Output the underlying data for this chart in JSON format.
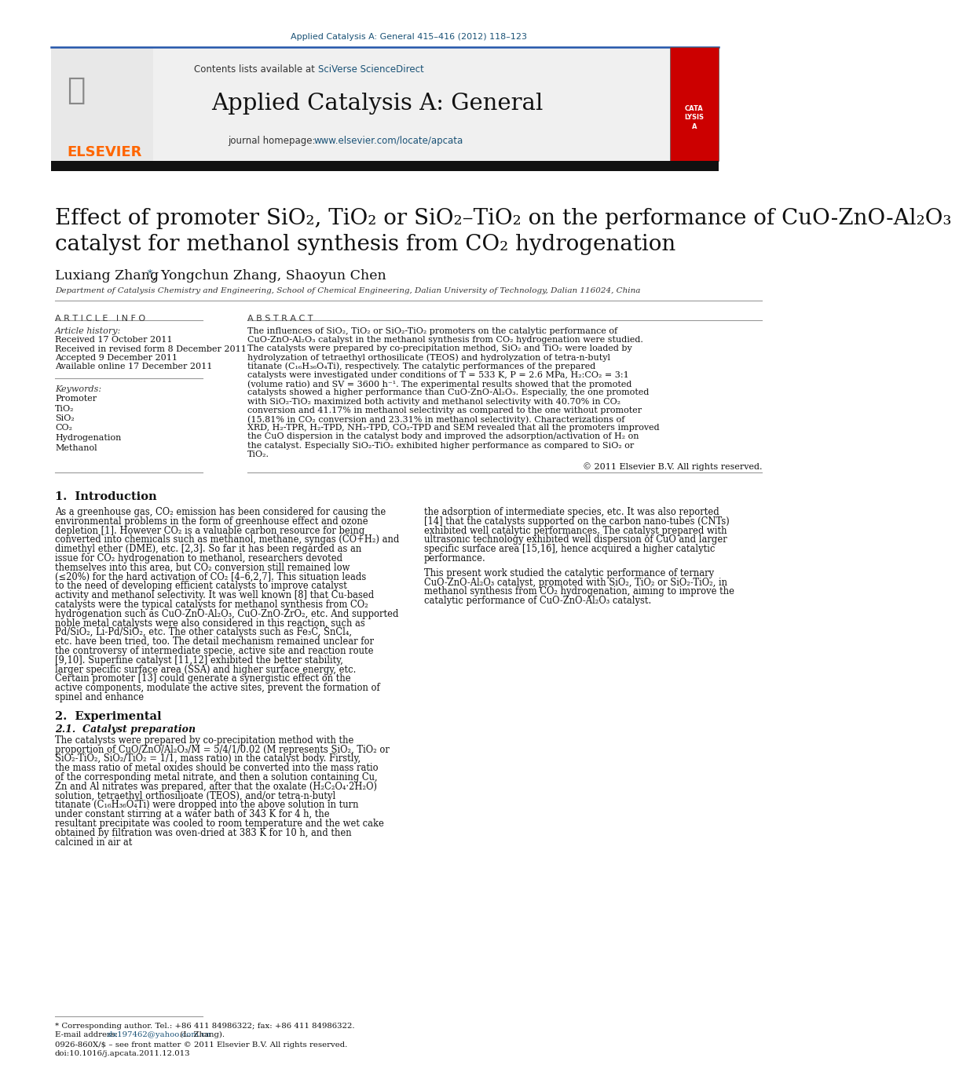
{
  "journal_ref": "Applied Catalysis A: General 415–416 (2012) 118–123",
  "journal_ref_color": "#1a5276",
  "journal_name": "Applied Catalysis A: General",
  "homepage_url": "www.elsevier.com/locate/apcata",
  "link_color": "#1a5276",
  "title_line1": "Effect of promoter SiO₂, TiO₂ or SiO₂–TiO₂ on the performance of CuO-ZnO-Al₂O₃",
  "title_line2": "catalyst for methanol synthesis from CO₂ hydrogenation",
  "authors": "Luxiang Zhang",
  "authors_rest": ", Yongchun Zhang, Shaoyun Chen",
  "affiliation": "Department of Catalysis Chemistry and Engineering, School of Chemical Engineering, Dalian University of Technology, Dalian 116024, China",
  "article_info_header": "A R T I C L E   I N F O",
  "abstract_header": "A B S T R A C T",
  "article_history_label": "Article history:",
  "received": "Received 17 October 2011",
  "revised": "Received in revised form 8 December 2011",
  "accepted": "Accepted 9 December 2011",
  "available": "Available online 17 December 2011",
  "keywords_label": "Keywords:",
  "keywords": [
    "Promoter",
    "TiO₂",
    "SiO₂",
    "CO₂",
    "Hydrogenation",
    "Methanol"
  ],
  "abstract_text": "The influences of SiO₂, TiO₂ or SiO₂-TiO₂ promoters on the catalytic performance of CuO-ZnO-Al₂O₃ catalyst in the methanol synthesis from CO₂ hydrogenation were studied. The catalysts were prepared by co-precipitation method, SiO₂ and TiO₂ were loaded by hydrolyzation of tetraethyl orthosilicate (TEOS) and hydrolyzation of tetra-n-butyl titanate (C₁₆H₃₆O₄Ti), respectively. The catalytic performances of the prepared catalysts were investigated under conditions of T = 533 K, P = 2.6 MPa, H₂:CO₂ = 3:1 (volume ratio) and SV = 3600 h⁻¹. The experimental results showed that the promoted catalysts showed a higher performance than CuO-ZnO-Al₂O₃. Especially, the one promoted with SiO₂-TiO₂ maximized both activity and methanol selectivity with 40.70% in CO₂ conversion and 41.17% in methanol selectivity as compared to the one without promoter (15.81% in CO₂ conversion and 23.31% in methanol selectivity). Characterizations of XRD, H₂-TPR, H₂-TPD, NH₃-TPD, CO₂-TPD and SEM revealed that all the promoters improved the CuO dispersion in the catalyst body and improved the adsorption/activation of H₂ on the catalyst. Especially SiO₂-TiO₂ exhibited higher performance as compared to SiO₂ or TiO₂.",
  "copyright": "© 2011 Elsevier B.V. All rights reserved.",
  "section1_title": "1.  Introduction",
  "intro_col1_para1": "    As a greenhouse gas, CO₂ emission has been considered for causing the environmental problems in the form of greenhouse effect and ozone depletion [1]. However CO₂ is a valuable carbon resource for being converted into chemicals such as methanol, methane, syngas (CO+H₂) and dimethyl ether (DME), etc. [2,3]. So far it has been regarded as an issue for CO₂ hydrogenation to methanol, researchers devoted themselves into this area, but CO₂ conversion still remained low (≤20%) for the hard activation of CO₂ [4–6,2,7]. This situation leads to the need of developing efficient catalysts to improve catalyst activity and methanol selectivity. It was well known [8] that Cu-based catalysts were the typical catalysts for methanol synthesis from CO₂ hydrogenation such as CuO-ZnO-Al₂O₃, CuO-ZnO-ZrO₂, etc. And supported noble metal catalysts were also considered in this reaction, such as Pd/SiO₂, Li-Pd/SiO₂, etc. The other catalysts such as Fe₃C, SnCl₄, etc. have been tried, too. The detail mechanism remained unclear for the controversy of intermediate specie, active site and reaction route [9,10]. Superfine catalyst [11,12] exhibited the better stability, larger specific surface area (SSA) and higher surface energy, etc. Certain promoter [13] could generate a synergistic effect on the active components, modulate the active sites, prevent the formation of spinel and enhance",
  "intro_col2_para1": "the adsorption of intermediate species, etc. It was also reported [14] that the catalysts supported on the carbon nano-tubes (CNTs) exhibited well catalytic performances. The catalyst prepared with ultrasonic technology exhibited well dispersion of CuO and larger specific surface area [15,16], hence acquired a higher catalytic performance.",
  "intro_col2_para2": "    This present work studied the catalytic performance of ternary CuO-ZnO-Al₂O₃ catalyst, promoted with SiO₂, TiO₂ or SiO₂-TiO₂, in methanol synthesis from CO₂ hydrogenation, aiming to improve the catalytic performance of CuO-ZnO-Al₂O₃ catalyst.",
  "section2_title": "2.  Experimental",
  "section21_title": "2.1.  Catalyst preparation",
  "section21_col1": "    The catalysts were prepared by co-precipitation method with the proportion of CuO/ZnO/Al₂O₃/M = 5/4/1/0.02 (M represents SiO₂, TiO₂ or SiO₂-TiO₂, SiO₂/TiO₂ = 1/1, mass ratio) in the catalyst body. Firstly, the mass ratio of metal oxides should be converted into the mass ratio of the corresponding metal nitrate, and then a solution containing Cu, Zn and Al nitrates was prepared, after that the oxalate (H₂C₂O₄·2H₂O) solution, tetraethyl orthosilioate (TEOS), and/or tetra-n-butyl titanate (C₁₆H₃₆O₄Ti) were dropped into the above solution in turn under constant stirring at a water bath of 343 K for 4 h, the resultant precipitate was cooled to room temperature and the wet cake obtained by filtration was oven-dried at 383 K for 10 h, and then calcined in air at",
  "footnote_line1": "* Corresponding author. Tel.: +86 411 84986322; fax: +86 411 84986322.",
  "footnote_email_label": "E-mail address: ",
  "footnote_email": "zlx197462@yahoo.com.cn",
  "footnote_email_end": " (L. Zhang).",
  "issn": "0926-860X/$ – see front matter © 2011 Elsevier B.V. All rights reserved.",
  "doi": "doi:10.1016/j.apcata.2011.12.013",
  "bg_color": "#ffffff"
}
